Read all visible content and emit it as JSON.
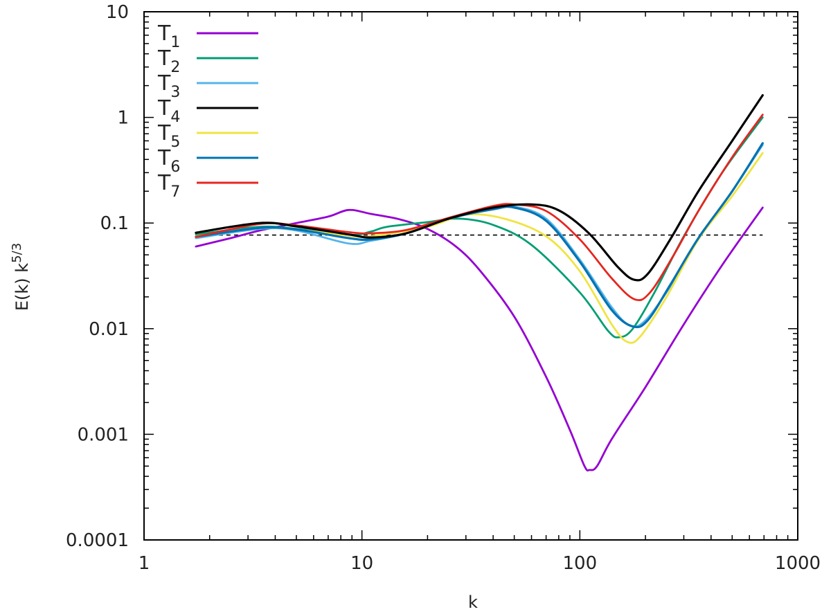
{
  "chart_data": {
    "type": "line",
    "title": "",
    "xlabel": "k",
    "ylabel": "E(k) k^{5/3}",
    "ylabel_main": "E(k) k",
    "ylabel_sup": "5/3",
    "xscale": "log",
    "yscale": "log",
    "xlim": [
      1,
      1000
    ],
    "ylim": [
      0.0001,
      10
    ],
    "grid": false,
    "legend_position": "upper-left",
    "x_ticks": [
      1,
      10,
      100,
      1000
    ],
    "x_tick_labels": [
      "1",
      "10",
      "100",
      "1000"
    ],
    "y_ticks": [
      0.0001,
      0.001,
      0.01,
      0.1,
      1,
      10
    ],
    "y_tick_labels": [
      "0.0001",
      "0.001",
      "0.01",
      "0.1",
      "1",
      "10"
    ],
    "reference_line": {
      "style": "dashed",
      "color": "#000000",
      "value": 0.077,
      "k_range": [
        1.73,
        690
      ]
    },
    "series": [
      {
        "name": "T1",
        "label_main": "T",
        "label_sub": "1",
        "color": "#9400D3",
        "points": [
          [
            1.73,
            0.06
          ],
          [
            2.5,
            0.072
          ],
          [
            3.4,
            0.085
          ],
          [
            5,
            0.1
          ],
          [
            7,
            0.115
          ],
          [
            8.7,
            0.133
          ],
          [
            11,
            0.122
          ],
          [
            15,
            0.108
          ],
          [
            20,
            0.088
          ],
          [
            27,
            0.06
          ],
          [
            35,
            0.035
          ],
          [
            50,
            0.013
          ],
          [
            70,
            0.0035
          ],
          [
            90,
            0.0011
          ],
          [
            105,
            0.0005
          ],
          [
            111,
            0.00046
          ],
          [
            120,
            0.0005
          ],
          [
            140,
            0.0009
          ],
          [
            200,
            0.0028
          ],
          [
            300,
            0.011
          ],
          [
            450,
            0.04
          ],
          [
            690,
            0.14
          ]
        ]
      },
      {
        "name": "T2",
        "label_main": "T",
        "label_sub": "2",
        "color": "#009E73",
        "points": [
          [
            1.73,
            0.078
          ],
          [
            3.4,
            0.092
          ],
          [
            5,
            0.088
          ],
          [
            8.7,
            0.077
          ],
          [
            11,
            0.083
          ],
          [
            13,
            0.092
          ],
          [
            20,
            0.102
          ],
          [
            28,
            0.11
          ],
          [
            40,
            0.096
          ],
          [
            60,
            0.062
          ],
          [
            100,
            0.022
          ],
          [
            135,
            0.0095
          ],
          [
            152,
            0.0083
          ],
          [
            175,
            0.01
          ],
          [
            220,
            0.022
          ],
          [
            300,
            0.075
          ],
          [
            450,
            0.3
          ],
          [
            690,
            1.0
          ]
        ]
      },
      {
        "name": "T3",
        "label_main": "T",
        "label_sub": "3",
        "color": "#56B4E9",
        "points": [
          [
            1.73,
            0.072
          ],
          [
            3.4,
            0.088
          ],
          [
            5,
            0.085
          ],
          [
            8.7,
            0.064
          ],
          [
            11,
            0.068
          ],
          [
            16,
            0.08
          ],
          [
            25,
            0.11
          ],
          [
            40,
            0.14
          ],
          [
            50,
            0.143
          ],
          [
            70,
            0.11
          ],
          [
            100,
            0.045
          ],
          [
            140,
            0.016
          ],
          [
            170,
            0.0107
          ],
          [
            200,
            0.012
          ],
          [
            260,
            0.025
          ],
          [
            350,
            0.07
          ],
          [
            500,
            0.2
          ],
          [
            690,
            0.55
          ]
        ]
      },
      {
        "name": "T4",
        "label_main": "T",
        "label_sub": "4",
        "color": "#000000",
        "points": [
          [
            1.73,
            0.081
          ],
          [
            3.4,
            0.1
          ],
          [
            5,
            0.093
          ],
          [
            8.7,
            0.078
          ],
          [
            11,
            0.073
          ],
          [
            16,
            0.08
          ],
          [
            25,
            0.11
          ],
          [
            40,
            0.14
          ],
          [
            60,
            0.15
          ],
          [
            80,
            0.132
          ],
          [
            110,
            0.08
          ],
          [
            150,
            0.038
          ],
          [
            178,
            0.029
          ],
          [
            205,
            0.033
          ],
          [
            260,
            0.07
          ],
          [
            350,
            0.2
          ],
          [
            500,
            0.6
          ],
          [
            690,
            1.62
          ]
        ]
      },
      {
        "name": "T5",
        "label_main": "T",
        "label_sub": "5",
        "color": "#F0E442",
        "points": [
          [
            1.73,
            0.075
          ],
          [
            3.4,
            0.09
          ],
          [
            5,
            0.087
          ],
          [
            8.7,
            0.076
          ],
          [
            11,
            0.075
          ],
          [
            20,
            0.092
          ],
          [
            30,
            0.12
          ],
          [
            45,
            0.11
          ],
          [
            70,
            0.075
          ],
          [
            100,
            0.035
          ],
          [
            140,
            0.011
          ],
          [
            165,
            0.0075
          ],
          [
            190,
            0.0085
          ],
          [
            250,
            0.02
          ],
          [
            350,
            0.07
          ],
          [
            500,
            0.18
          ],
          [
            690,
            0.46
          ]
        ]
      },
      {
        "name": "T6",
        "label_main": "T",
        "label_sub": "6",
        "color": "#0072B2",
        "points": [
          [
            1.73,
            0.074
          ],
          [
            3.4,
            0.09
          ],
          [
            5,
            0.087
          ],
          [
            8.7,
            0.072
          ],
          [
            11,
            0.07
          ],
          [
            16,
            0.08
          ],
          [
            25,
            0.11
          ],
          [
            40,
            0.135
          ],
          [
            50,
            0.14
          ],
          [
            70,
            0.105
          ],
          [
            100,
            0.043
          ],
          [
            140,
            0.015
          ],
          [
            175,
            0.0105
          ],
          [
            205,
            0.012
          ],
          [
            260,
            0.026
          ],
          [
            350,
            0.072
          ],
          [
            500,
            0.2
          ],
          [
            690,
            0.57
          ]
        ]
      },
      {
        "name": "T7",
        "label_main": "T",
        "label_sub": "7",
        "color": "#E5261F",
        "points": [
          [
            1.73,
            0.074
          ],
          [
            3.4,
            0.098
          ],
          [
            5,
            0.095
          ],
          [
            8.7,
            0.082
          ],
          [
            11,
            0.08
          ],
          [
            16,
            0.086
          ],
          [
            25,
            0.112
          ],
          [
            40,
            0.145
          ],
          [
            50,
            0.15
          ],
          [
            70,
            0.13
          ],
          [
            100,
            0.07
          ],
          [
            140,
            0.03
          ],
          [
            178,
            0.019
          ],
          [
            210,
            0.022
          ],
          [
            270,
            0.05
          ],
          [
            350,
            0.13
          ],
          [
            500,
            0.42
          ],
          [
            690,
            1.06
          ]
        ]
      }
    ]
  }
}
